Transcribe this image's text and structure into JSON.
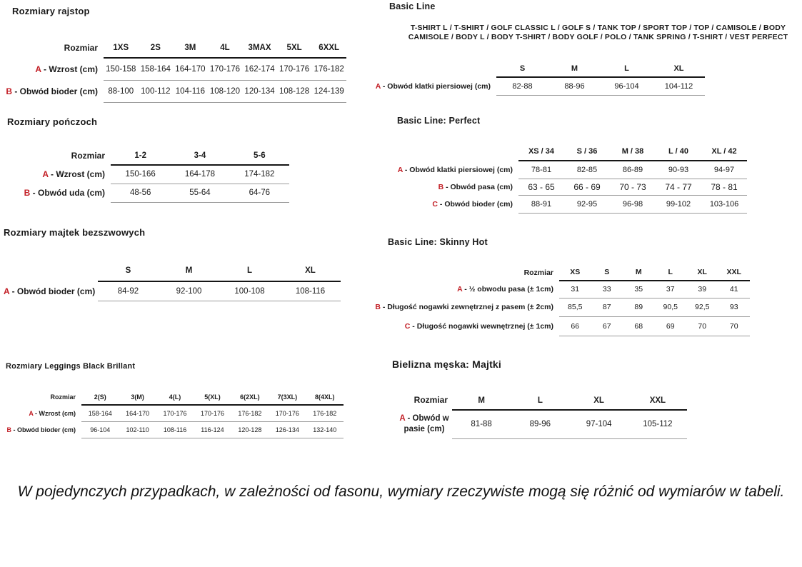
{
  "accent_color": "#c32027",
  "note": "W pojedynczych przypadkach, w zależności od fasonu, wymiary rzeczywiste mogą się różnić od wymiarów w tabeli.",
  "sections": [
    {
      "id": "rajstopy",
      "title": "Rozmiary rajstop",
      "table": {
        "corner_label": "Rozmiar",
        "columns": [
          "1XS",
          "2S",
          "3M",
          "4L",
          "3MAX",
          "5XL",
          "6XXL"
        ],
        "rows": [
          {
            "letter": "A",
            "label": "Wzrost (cm)",
            "values": [
              "150-158",
              "158-164",
              "164-170",
              "170-176",
              "162-174",
              "170-176",
              "176-182"
            ]
          },
          {
            "letter": "B",
            "label": "Obwód bioder (cm)",
            "values": [
              "88-100",
              "100-112",
              "104-116",
              "108-120",
              "120-134",
              "108-128",
              "124-139"
            ]
          }
        ]
      }
    },
    {
      "id": "ponczochy",
      "title": "Rozmiary pończoch",
      "table": {
        "corner_label": "Rozmiar",
        "columns": [
          "1-2",
          "3-4",
          "5-6"
        ],
        "rows": [
          {
            "letter": "A",
            "label": "Wzrost (cm)",
            "values": [
              "150-166",
              "164-178",
              "174-182"
            ]
          },
          {
            "letter": "B",
            "label": "Obwód uda (cm)",
            "values": [
              "48-56",
              "55-64",
              "64-76"
            ]
          }
        ]
      }
    },
    {
      "id": "majtki-bezszwowe",
      "title": "Rozmiary majtek bezszwowych",
      "table": {
        "corner_label": "",
        "columns": [
          "S",
          "M",
          "L",
          "XL"
        ],
        "rows": [
          {
            "letter": "A",
            "label": "Obwód bioder (cm)",
            "values": [
              "84-92",
              "92-100",
              "100-108",
              "108-116"
            ]
          }
        ]
      }
    },
    {
      "id": "leggings-black-brillant",
      "title": "Rozmiary Leggings Black Brillant",
      "table": {
        "corner_label": "Rozmiar",
        "columns": [
          "2(S)",
          "3(M)",
          "4(L)",
          "5(XL)",
          "6(2XL)",
          "7(3XL)",
          "8(4XL)"
        ],
        "rows": [
          {
            "letter": "A",
            "label": "Wzrost (cm)",
            "values": [
              "158-164",
              "164-170",
              "170-176",
              "170-176",
              "176-182",
              "170-176",
              "176-182"
            ]
          },
          {
            "letter": "B",
            "label": "Obwód bioder (cm)",
            "values": [
              "96-104",
              "102-110",
              "108-116",
              "116-124",
              "120-128",
              "126-134",
              "132-140"
            ]
          }
        ]
      }
    },
    {
      "id": "basic-line",
      "title": "Basic Line",
      "subtitle": "T-SHIRT L / T-SHIRT / GOLF CLASSIC L / GOLF S / TANK TOP / SPORT TOP / TOP / CAMISOLE / BODY CAMISOLE / BODY L / BODY T-SHIRT / BODY GOLF / POLO / TANK SPRING / T-SHIRT / VEST PERFECT",
      "table": {
        "corner_label": "",
        "columns": [
          "S",
          "M",
          "L",
          "XL"
        ],
        "rows": [
          {
            "letter": "A",
            "label": "Obwód klatki piersiowej (cm)",
            "values": [
              "82-88",
              "88-96",
              "96-104",
              "104-112"
            ]
          }
        ]
      }
    },
    {
      "id": "basic-line-perfect",
      "title": "Basic Line: Perfect",
      "table": {
        "corner_label": "",
        "columns": [
          "XS / 34",
          "S / 36",
          "M / 38",
          "L / 40",
          "XL / 42"
        ],
        "rows": [
          {
            "letter": "A",
            "label": "Obwód klatki piersiowej (cm)",
            "values": [
              "78-81",
              "82-85",
              "86-89",
              "90-93",
              "94-97"
            ]
          },
          {
            "letter": "B",
            "label": "Obwód pasa (cm)",
            "values": [
              "63 - 65",
              "66 - 69",
              "70 - 73",
              "74 - 77",
              "78 - 81"
            ]
          },
          {
            "letter": "C",
            "label": "Obwód bioder (cm)",
            "values": [
              "88-91",
              "92-95",
              "96-98",
              "99-102",
              "103-106"
            ]
          }
        ]
      }
    },
    {
      "id": "basic-line-skinny-hot",
      "title": "Basic Line: Skinny Hot",
      "table": {
        "corner_label": "Rozmiar",
        "columns": [
          "XS",
          "S",
          "M",
          "L",
          "XL",
          "XXL"
        ],
        "rows": [
          {
            "letter": "A",
            "label": "½ obwodu pasa (± 1cm)",
            "values": [
              "31",
              "33",
              "35",
              "37",
              "39",
              "41"
            ]
          },
          {
            "letter": "B",
            "label": "Długość nogawki zewnętrznej z pasem (± 2cm)",
            "values": [
              "85,5",
              "87",
              "89",
              "90,5",
              "92,5",
              "93"
            ]
          },
          {
            "letter": "C",
            "label": "Długość nogawki wewnętrznej (± 1cm)",
            "values": [
              "66",
              "67",
              "68",
              "69",
              "70",
              "70"
            ]
          }
        ]
      }
    },
    {
      "id": "bielizna-meska-majtki",
      "title": "Bielizna męska: Majtki",
      "table": {
        "corner_label": "Rozmiar",
        "columns": [
          "M",
          "L",
          "XL",
          "XXL"
        ],
        "rows": [
          {
            "letter": "A",
            "label": "Obwód w pasie (cm)",
            "values": [
              "81-88",
              "89-96",
              "97-104",
              "105-112"
            ]
          }
        ]
      }
    }
  ]
}
